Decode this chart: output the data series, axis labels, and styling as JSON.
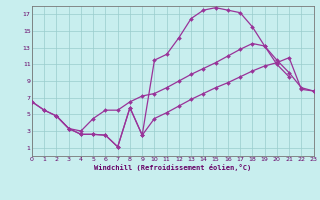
{
  "xlabel": "Windchill (Refroidissement éolien,°C)",
  "bg_color": "#c8eeee",
  "line_color": "#993399",
  "grid_color": "#99cccc",
  "axis_color": "#777777",
  "text_color": "#660066",
  "xlim": [
    0,
    23
  ],
  "ylim": [
    0,
    18
  ],
  "xticks": [
    0,
    1,
    2,
    3,
    4,
    5,
    6,
    7,
    8,
    9,
    10,
    11,
    12,
    13,
    14,
    15,
    16,
    17,
    18,
    19,
    20,
    21,
    22,
    23
  ],
  "yticks": [
    1,
    3,
    5,
    7,
    9,
    11,
    13,
    15,
    17
  ],
  "curve1_x": [
    0,
    1,
    2,
    3,
    4,
    5,
    6,
    7,
    8,
    9,
    10,
    11,
    12,
    13,
    14,
    15,
    16,
    17,
    18,
    19,
    20,
    21
  ],
  "curve1_y": [
    6.5,
    5.5,
    4.8,
    3.3,
    2.6,
    2.6,
    2.5,
    1.1,
    5.8,
    2.5,
    11.5,
    12.2,
    14.2,
    16.5,
    17.5,
    17.8,
    17.5,
    17.2,
    15.5,
    13.2,
    11.0,
    9.5
  ],
  "curve2_x": [
    0,
    1,
    2,
    3,
    4,
    5,
    6,
    7,
    8,
    9,
    10,
    11,
    12,
    13,
    14,
    15,
    16,
    17,
    18,
    19,
    20,
    21,
    22,
    23
  ],
  "curve2_y": [
    6.5,
    5.5,
    4.8,
    3.3,
    3.0,
    4.5,
    5.5,
    5.5,
    6.5,
    7.2,
    7.5,
    8.2,
    9.0,
    9.8,
    10.5,
    11.2,
    12.0,
    12.8,
    13.5,
    13.2,
    11.5,
    10.0,
    8.2,
    7.8
  ],
  "curve3_x": [
    2,
    3,
    4,
    5,
    6,
    7,
    8,
    9,
    10,
    11,
    12,
    13,
    14,
    15,
    16,
    17,
    18,
    19,
    20,
    21,
    22,
    23
  ],
  "curve3_y": [
    4.8,
    3.3,
    2.6,
    2.6,
    2.5,
    1.1,
    5.8,
    2.5,
    4.5,
    5.2,
    6.0,
    6.8,
    7.5,
    8.2,
    8.8,
    9.5,
    10.2,
    10.8,
    11.2,
    11.8,
    8.0,
    7.8
  ],
  "markersize": 2.0,
  "linewidth": 0.9
}
